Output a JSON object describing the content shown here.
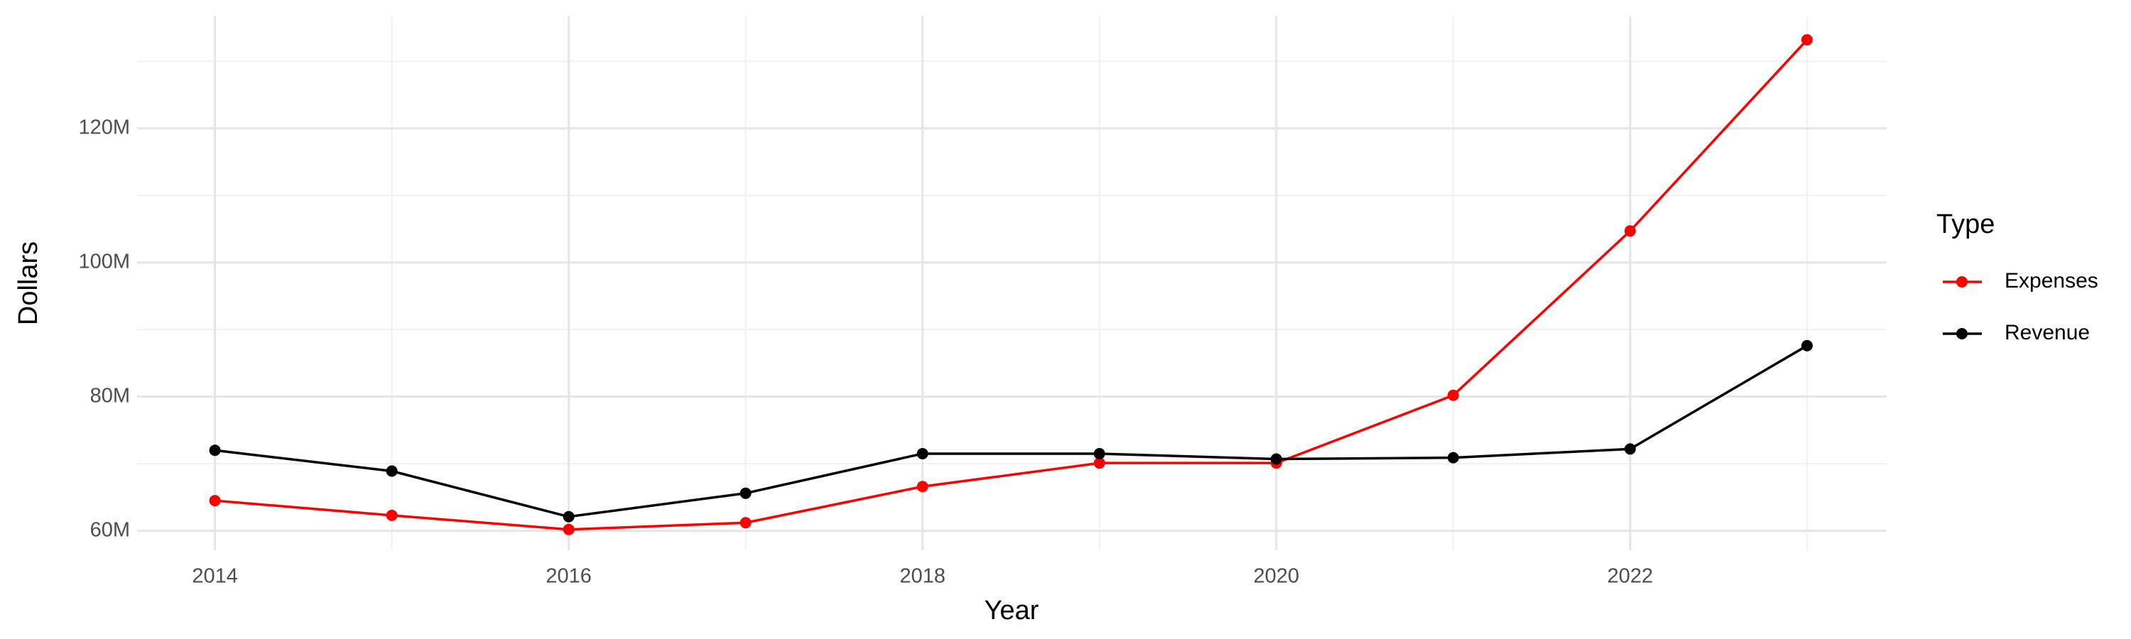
{
  "chart_data": {
    "type": "line",
    "x_label": "Year",
    "y_label": "Dollars",
    "legend_title": "Type",
    "x": [
      2014,
      2015,
      2016,
      2017,
      2018,
      2019,
      2020,
      2021,
      2022,
      2023
    ],
    "series": [
      {
        "name": "Expenses",
        "color": "#ff0000",
        "values": [
          64500000,
          62300000,
          60200000,
          61200000,
          66600000,
          70100000,
          70100000,
          80200000,
          104700000,
          133200000
        ]
      },
      {
        "name": "Revenue",
        "color": "#000000",
        "values": [
          72000000,
          68900000,
          62100000,
          65600000,
          71500000,
          71500000,
          70700000,
          70900000,
          72200000,
          87600000
        ]
      }
    ],
    "xlim": [
      2013.56,
      2023.45
    ],
    "xticks": [
      2014,
      2016,
      2018,
      2020,
      2022
    ],
    "ylim": [
      57100000,
      136700000
    ],
    "yticks": [
      {
        "value": 60000000,
        "label": "60M"
      },
      {
        "value": 80000000,
        "label": "80M"
      },
      {
        "value": 100000000,
        "label": "100M"
      },
      {
        "value": 120000000,
        "label": "120M"
      }
    ],
    "grid": true,
    "legend": "right"
  }
}
